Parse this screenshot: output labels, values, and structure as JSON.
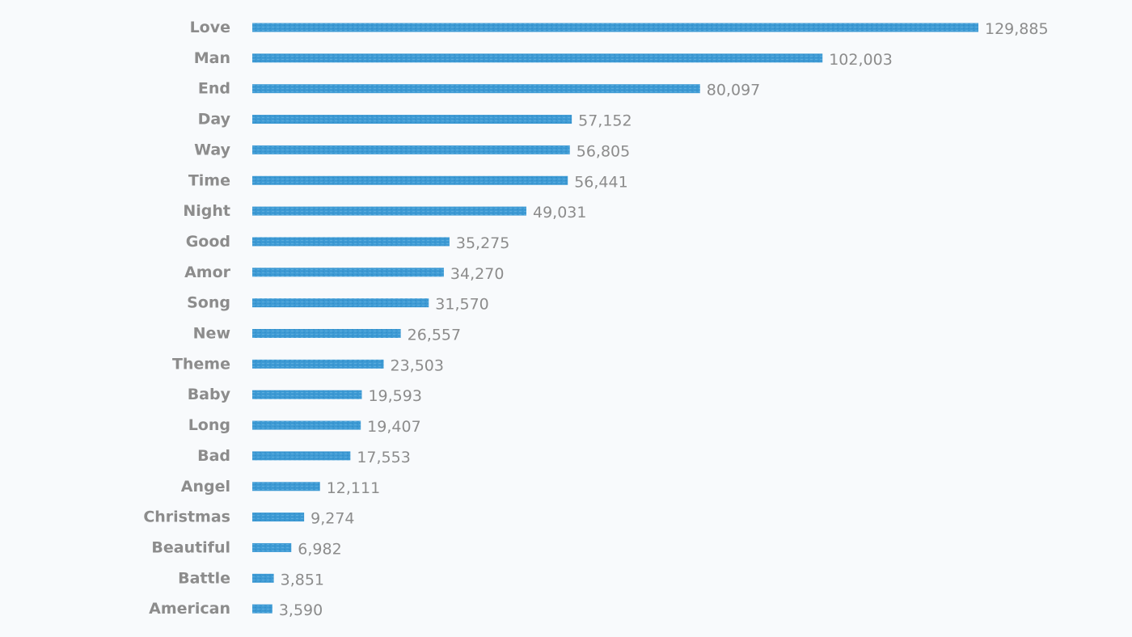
{
  "chart_data": {
    "type": "bar",
    "orientation": "horizontal",
    "categories": [
      "Love",
      "Man",
      "End",
      "Day",
      "Way",
      "Time",
      "Night",
      "Good",
      "Amor",
      "Song",
      "New",
      "Theme",
      "Baby",
      "Long",
      "Bad",
      "Angel",
      "Christmas",
      "Beautiful",
      "Battle",
      "American"
    ],
    "values": [
      129885,
      102003,
      80097,
      57152,
      56805,
      56441,
      49031,
      35275,
      34270,
      31570,
      26557,
      23503,
      19593,
      19407,
      17553,
      12111,
      9274,
      6982,
      3851,
      3590
    ],
    "value_labels": [
      "129,885",
      "102,003",
      "80,097",
      "57,152",
      "56,805",
      "56,441",
      "49,031",
      "35,275",
      "34,270",
      "31,570",
      "26,557",
      "23,503",
      "19,593",
      "19,407",
      "17,553",
      "12,111",
      "9,274",
      "6,982",
      "3,851",
      "3,590"
    ],
    "title": "",
    "xlabel": "",
    "ylabel": "",
    "xlim": [
      0,
      129885
    ],
    "grid": false,
    "legend": "none"
  },
  "colors": {
    "bar": "#3d9ad4",
    "bar_texture": "#6ab4e2",
    "label": "#8c8c8c",
    "background": "#f8fafc"
  }
}
